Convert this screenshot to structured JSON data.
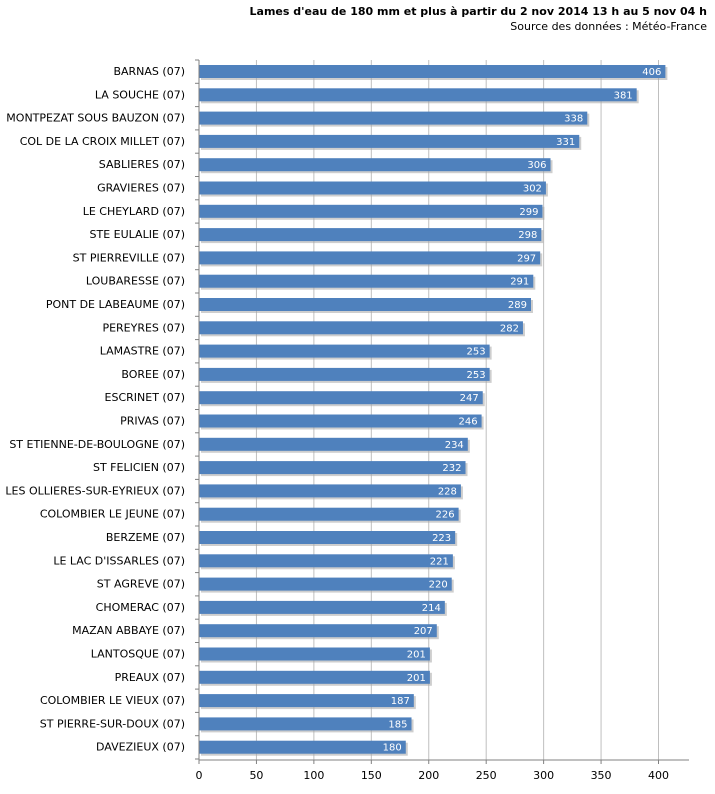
{
  "chart_data": {
    "type": "bar",
    "orientation": "horizontal",
    "title": "Lames d'eau de 180 mm et plus à partir du 2 nov 2014 13 h au 5 nov 04 h",
    "subtitle": "Source des données : Météo-France",
    "xlabel": "",
    "ylabel": "",
    "xlim": [
      0,
      425
    ],
    "ticks": [
      0,
      50,
      100,
      150,
      200,
      250,
      300,
      350,
      400
    ],
    "grid": true,
    "legend": "none",
    "bar_color": "#4f81bd",
    "categories": [
      "BARNAS (07)",
      "LA SOUCHE (07)",
      "MONTPEZAT SOUS BAUZON (07)",
      "COL DE LA CROIX MILLET (07)",
      "SABLIERES (07)",
      "GRAVIERES (07)",
      "LE CHEYLARD (07)",
      "STE EULALIE (07)",
      "ST PIERREVILLE (07)",
      "LOUBARESSE (07)",
      "PONT DE LABEAUME (07)",
      "PEREYRES (07)",
      "LAMASTRE (07)",
      "BOREE (07)",
      "ESCRINET (07)",
      "PRIVAS (07)",
      "ST ETIENNE-DE-BOULOGNE  (07)",
      "ST FELICIEN (07)",
      "LES OLLIERES-SUR-EYRIEUX  (07)",
      "COLOMBIER LE JEUNE  (07)",
      "BERZEME (07)",
      "LE LAC D'ISSARLES (07)",
      "ST AGREVE (07)",
      "CHOMERAC (07)",
      "MAZAN ABBAYE (07)",
      "LANTOSQUE (07)",
      "PREAUX (07)",
      "COLOMBIER LE VIEUX  (07)",
      "ST PIERRE-SUR-DOUX  (07)",
      "DAVEZIEUX  (07)"
    ],
    "values": [
      406,
      381,
      338,
      331,
      306,
      302,
      299,
      298,
      297,
      291,
      289,
      282,
      253,
      253,
      247,
      246,
      234,
      232,
      228,
      226,
      223,
      221,
      220,
      214,
      207,
      201,
      201,
      187,
      185,
      180
    ]
  }
}
